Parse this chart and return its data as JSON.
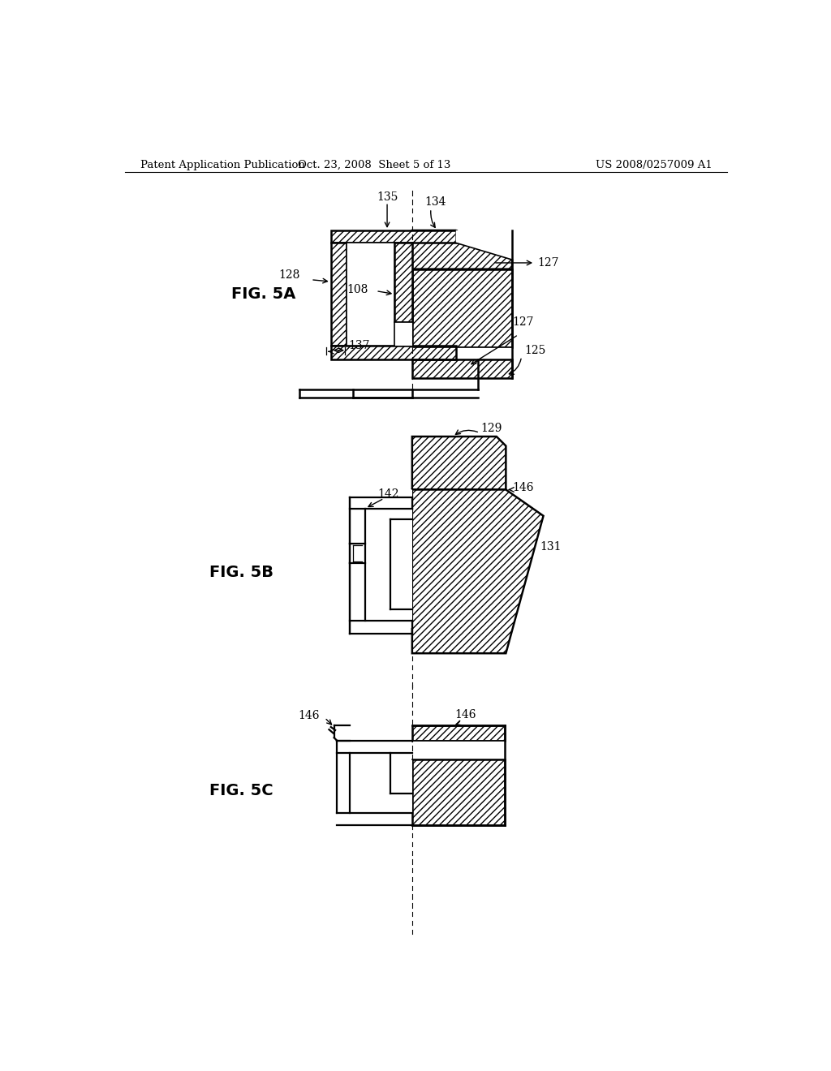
{
  "header_left": "Patent Application Publication",
  "header_center": "Oct. 23, 2008  Sheet 5 of 13",
  "header_right": "US 2008/0257009 A1",
  "fig5a_label": "FIG. 5A",
  "fig5b_label": "FIG. 5B",
  "fig5c_label": "FIG. 5C",
  "bg_color": "#ffffff",
  "font_size_header": 9.5,
  "font_size_label": 14,
  "font_size_ref": 10
}
